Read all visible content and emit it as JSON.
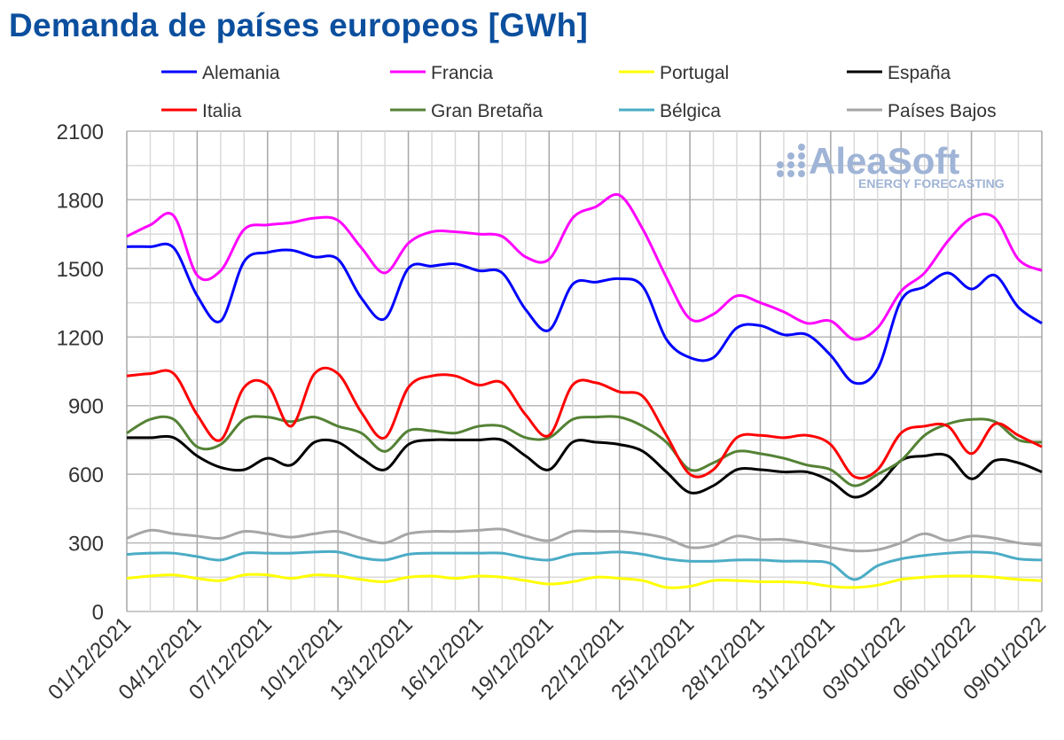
{
  "chart_data": {
    "type": "line",
    "title": "Demanda de países europeos [GWh]",
    "xlabel": "",
    "ylabel": "",
    "ylim": [
      0,
      2100
    ],
    "yticks": [
      "0",
      "300",
      "600",
      "900",
      "1200",
      "1500",
      "1800",
      "2100"
    ],
    "x_tick_labels": [
      "01/12/2021",
      "04/12/2021",
      "07/12/2021",
      "10/12/2021",
      "13/12/2021",
      "16/12/2021",
      "19/12/2021",
      "22/12/2021",
      "25/12/2021",
      "28/12/2021",
      "31/12/2021",
      "03/01/2022",
      "06/01/2022",
      "09/01/2022"
    ],
    "x_start": "01/12/2021",
    "x_end": "09/01/2022",
    "num_days": 40,
    "grid": true,
    "legend_position": "top",
    "watermark": {
      "name": "AleaSoft",
      "sub": "ENERGY FORECASTING"
    },
    "series": [
      {
        "name": "Alemania",
        "color": "#0000ff",
        "values": [
          1595,
          1595,
          1590,
          1380,
          1270,
          1530,
          1570,
          1580,
          1550,
          1540,
          1370,
          1280,
          1500,
          1510,
          1520,
          1490,
          1480,
          1320,
          1230,
          1430,
          1440,
          1455,
          1420,
          1190,
          1110,
          1110,
          1240,
          1250,
          1210,
          1210,
          1120,
          1000,
          1060,
          1360,
          1420,
          1480,
          1410,
          1470,
          1330,
          1260
        ]
      },
      {
        "name": "Francia",
        "color": "#ff00ff",
        "values": [
          1640,
          1690,
          1730,
          1470,
          1490,
          1670,
          1690,
          1700,
          1720,
          1710,
          1590,
          1480,
          1610,
          1660,
          1660,
          1650,
          1640,
          1550,
          1540,
          1720,
          1770,
          1820,
          1670,
          1460,
          1280,
          1300,
          1380,
          1350,
          1310,
          1260,
          1270,
          1190,
          1240,
          1400,
          1480,
          1620,
          1720,
          1720,
          1540,
          1490
        ]
      },
      {
        "name": "Portugal",
        "color": "#ffff00",
        "values": [
          145,
          155,
          160,
          145,
          135,
          160,
          160,
          145,
          160,
          155,
          140,
          130,
          150,
          155,
          145,
          155,
          150,
          135,
          120,
          130,
          150,
          145,
          135,
          105,
          110,
          135,
          135,
          130,
          130,
          125,
          110,
          105,
          115,
          140,
          150,
          155,
          155,
          150,
          140,
          135
        ]
      },
      {
        "name": "España",
        "color": "#000000",
        "values": [
          760,
          760,
          760,
          680,
          630,
          620,
          670,
          640,
          740,
          740,
          670,
          620,
          730,
          750,
          750,
          750,
          750,
          680,
          620,
          740,
          740,
          730,
          700,
          610,
          520,
          550,
          620,
          620,
          610,
          610,
          570,
          500,
          550,
          660,
          680,
          680,
          580,
          660,
          650,
          610
        ]
      },
      {
        "name": "Italia",
        "color": "#ff0000",
        "values": [
          1030,
          1040,
          1040,
          860,
          750,
          980,
          990,
          810,
          1040,
          1040,
          870,
          760,
          980,
          1030,
          1030,
          990,
          1000,
          860,
          770,
          990,
          1000,
          960,
          940,
          770,
          600,
          620,
          760,
          770,
          760,
          770,
          730,
          590,
          620,
          780,
          810,
          810,
          690,
          820,
          770,
          720
        ]
      },
      {
        "name": "Gran Bretaña",
        "color": "#548235",
        "values": [
          780,
          840,
          840,
          720,
          730,
          840,
          850,
          830,
          850,
          810,
          780,
          700,
          790,
          790,
          780,
          810,
          810,
          760,
          760,
          840,
          850,
          850,
          810,
          740,
          620,
          650,
          700,
          690,
          670,
          640,
          620,
          550,
          600,
          660,
          770,
          820,
          840,
          830,
          750,
          740
        ]
      },
      {
        "name": "Bélgica",
        "color": "#4bacc6",
        "values": [
          250,
          255,
          255,
          240,
          225,
          255,
          255,
          255,
          260,
          260,
          235,
          225,
          250,
          255,
          255,
          255,
          255,
          235,
          225,
          250,
          255,
          260,
          250,
          230,
          220,
          220,
          225,
          225,
          220,
          220,
          210,
          140,
          200,
          230,
          245,
          255,
          260,
          255,
          230,
          225
        ]
      },
      {
        "name": "Países Bajos",
        "color": "#a6a6a6",
        "values": [
          320,
          355,
          340,
          330,
          320,
          350,
          340,
          325,
          340,
          350,
          320,
          300,
          340,
          350,
          350,
          355,
          360,
          330,
          310,
          350,
          350,
          350,
          340,
          320,
          280,
          290,
          330,
          315,
          315,
          300,
          280,
          265,
          270,
          300,
          340,
          310,
          330,
          320,
          300,
          290
        ]
      }
    ]
  }
}
